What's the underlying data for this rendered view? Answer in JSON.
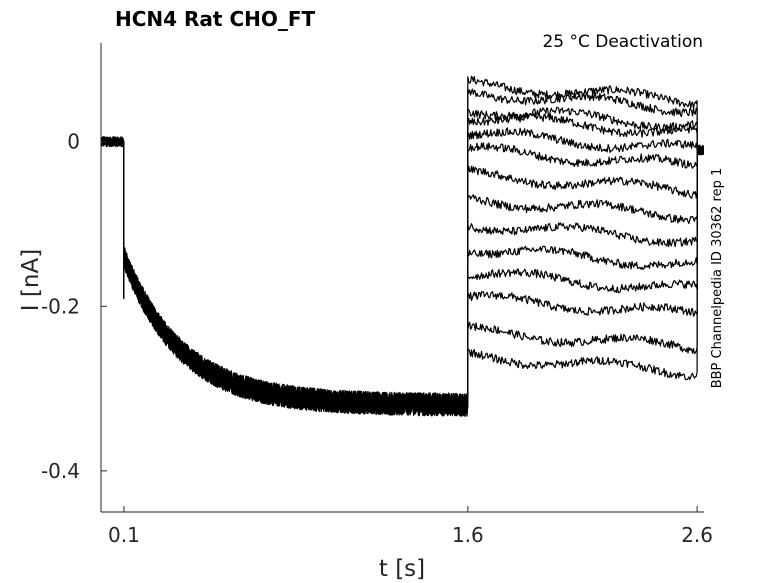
{
  "chart_data": {
    "type": "line",
    "title": "HCN4  Rat  CHO_FT",
    "annotation": "25 °C  Deactivation",
    "side_label": "BBP Channelpedia ID 30362 rep 1",
    "xlabel": "t [s]",
    "ylabel": "I [nA]",
    "xlim": [
      0.0,
      2.63
    ],
    "ylim": [
      -0.45,
      0.12
    ],
    "x_ticks": [
      0.1,
      1.6,
      2.6
    ],
    "x_tick_labels": [
      "0.1",
      "1.6",
      "2.6"
    ],
    "y_ticks": [
      0,
      -0.2,
      -0.4
    ],
    "y_tick_labels": [
      "0",
      "-0.2",
      "-0.4"
    ],
    "grid": false,
    "protocol": {
      "pre_level": 0.0,
      "step_on": 0.1,
      "activation_initial": -0.14,
      "activation_steady": -0.32,
      "activation_tau": 0.25,
      "step_off": 1.6,
      "end": 2.6,
      "post_level": -0.01
    },
    "series_levels_at_end": [
      0.05,
      0.04,
      0.02,
      0.01,
      -0.01,
      -0.03,
      -0.06,
      -0.09,
      -0.12,
      -0.15,
      -0.18,
      -0.21,
      -0.25,
      -0.28
    ]
  }
}
